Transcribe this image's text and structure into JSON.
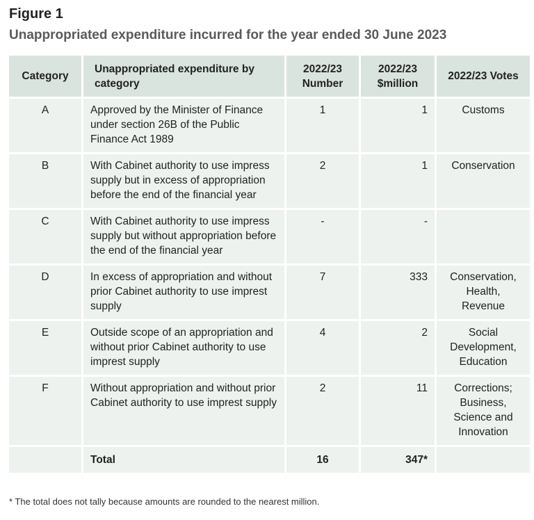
{
  "figure": {
    "label": "Figure 1",
    "title": "Unappropriated expenditure incurred for the year ended 30 June 2023"
  },
  "table": {
    "headers": [
      "Category",
      "Unappropriated expenditure by category",
      "2022/23 Number",
      "2022/23 $million",
      "2022/23 Votes"
    ],
    "rows": [
      {
        "category": "A",
        "description": "Approved by the Minister of Finance under section 26B of the Public Finance Act 1989",
        "number": "1",
        "amount": "1",
        "votes": "Customs"
      },
      {
        "category": "B",
        "description": "With Cabinet authority to use impress supply but in excess of appropriation before the end of the financial year",
        "number": "2",
        "amount": "1",
        "votes": "Conservation"
      },
      {
        "category": "C",
        "description": "With Cabinet authority to use impress supply but without appropriation before the end of the financial year",
        "number": "-",
        "amount": "-",
        "votes": ""
      },
      {
        "category": "D",
        "description": "In excess of appropriation and without prior Cabinet authority to use imprest supply",
        "number": "7",
        "amount": "333",
        "votes": "Conservation, Health, Revenue"
      },
      {
        "category": "E",
        "description": "Outside scope of an appropriation and without prior Cabinet authority to use imprest supply",
        "number": "4",
        "amount": "2",
        "votes": "Social Development, Education"
      },
      {
        "category": "F",
        "description": "Without appropriation and without prior Cabinet authority to use imprest supply",
        "number": "2",
        "amount": "11",
        "votes": "Corrections; Business, Science and Innovation"
      }
    ],
    "total": {
      "label": "Total",
      "number": "16",
      "amount": "347*"
    }
  },
  "footnote": "* The total does not tally because amounts are rounded to the nearest million."
}
